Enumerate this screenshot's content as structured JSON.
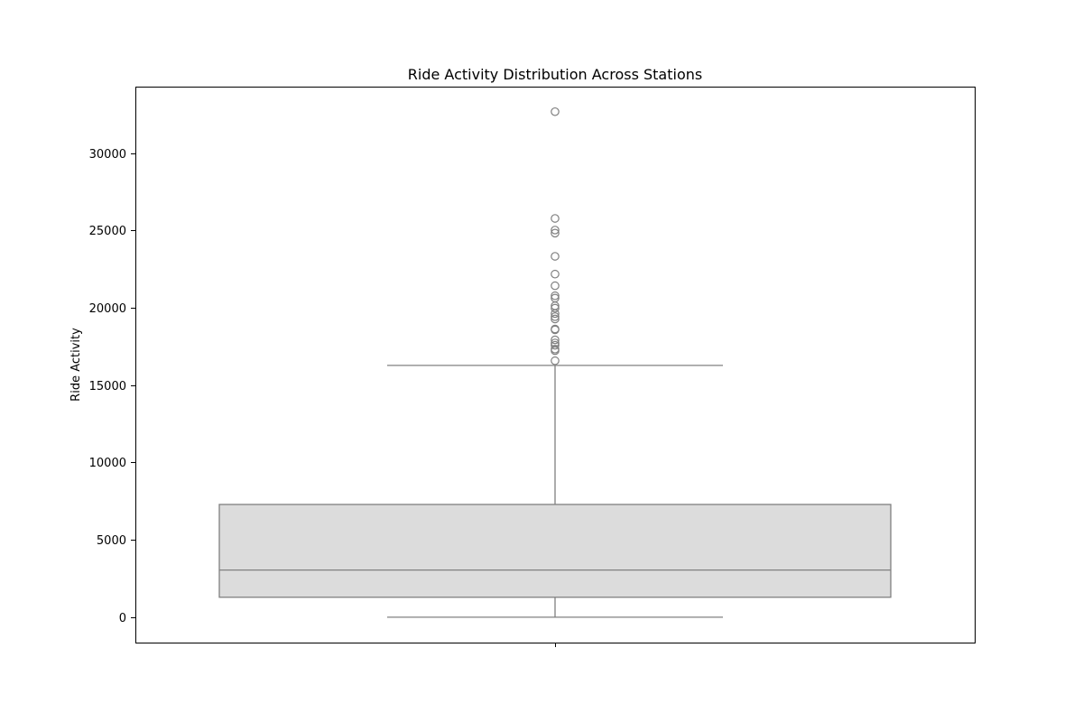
{
  "chart_data": {
    "type": "box",
    "title": "Ride Activity Distribution Across Stations",
    "xlabel": "",
    "ylabel": "Ride Activity",
    "ylim": [
      -1640,
      34300
    ],
    "yticks": [
      0,
      5000,
      10000,
      15000,
      20000,
      25000,
      30000
    ],
    "ytick_labels": [
      "0",
      "5000",
      "10000",
      "15000",
      "20000",
      "25000",
      "30000"
    ],
    "grid": false,
    "legend": "none",
    "box": {
      "whisker_low": 0,
      "q1": 1290,
      "median": 3050,
      "q3": 7290,
      "whisker_high": 16280,
      "outliers": [
        16580,
        17230,
        17330,
        17580,
        17730,
        17930,
        18580,
        18630,
        19280,
        19430,
        19630,
        19980,
        20130,
        20630,
        20780,
        21430,
        22180,
        23330,
        24830,
        25030,
        25780,
        32680
      ]
    },
    "colors": {
      "box_fill": "#dcdcdc",
      "lines": "#808080",
      "frame": "#000000"
    }
  }
}
